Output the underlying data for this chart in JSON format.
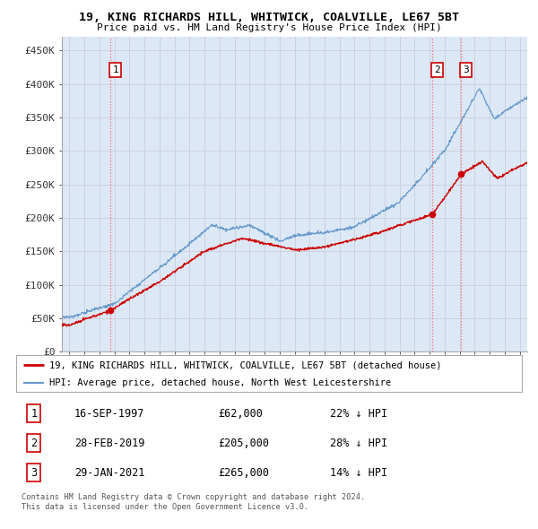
{
  "title": "19, KING RICHARDS HILL, WHITWICK, COALVILLE, LE67 5BT",
  "subtitle": "Price paid vs. HM Land Registry's House Price Index (HPI)",
  "legend_label_red": "19, KING RICHARDS HILL, WHITWICK, COALVILLE, LE67 5BT (detached house)",
  "legend_label_blue": "HPI: Average price, detached house, North West Leicestershire",
  "footer1": "Contains HM Land Registry data © Crown copyright and database right 2024.",
  "footer2": "This data is licensed under the Open Government Licence v3.0.",
  "sales": [
    {
      "num": 1,
      "date": "16-SEP-1997",
      "price": 62000,
      "pct": "22%",
      "dir": "↓",
      "x_year": 1997.71
    },
    {
      "num": 2,
      "date": "28-FEB-2019",
      "price": 205000,
      "pct": "28%",
      "dir": "↓",
      "x_year": 2019.16
    },
    {
      "num": 3,
      "date": "29-JAN-2021",
      "price": 265000,
      "pct": "14%",
      "dir": "↓",
      "x_year": 2021.08
    }
  ],
  "ylim": [
    0,
    470000
  ],
  "xlim_start": 1994.5,
  "xlim_end": 2025.5,
  "yticks": [
    0,
    50000,
    100000,
    150000,
    200000,
    250000,
    300000,
    350000,
    400000,
    450000
  ],
  "ytick_labels": [
    "£0",
    "£50K",
    "£100K",
    "£150K",
    "£200K",
    "£250K",
    "£300K",
    "£350K",
    "£400K",
    "£450K"
  ],
  "red_color": "#cc0000",
  "blue_color": "#6699cc",
  "vline_color": "#ff6666",
  "grid_color": "#ccccdd",
  "background_plot": "#dce8f5",
  "background_fig": "#ffffff"
}
